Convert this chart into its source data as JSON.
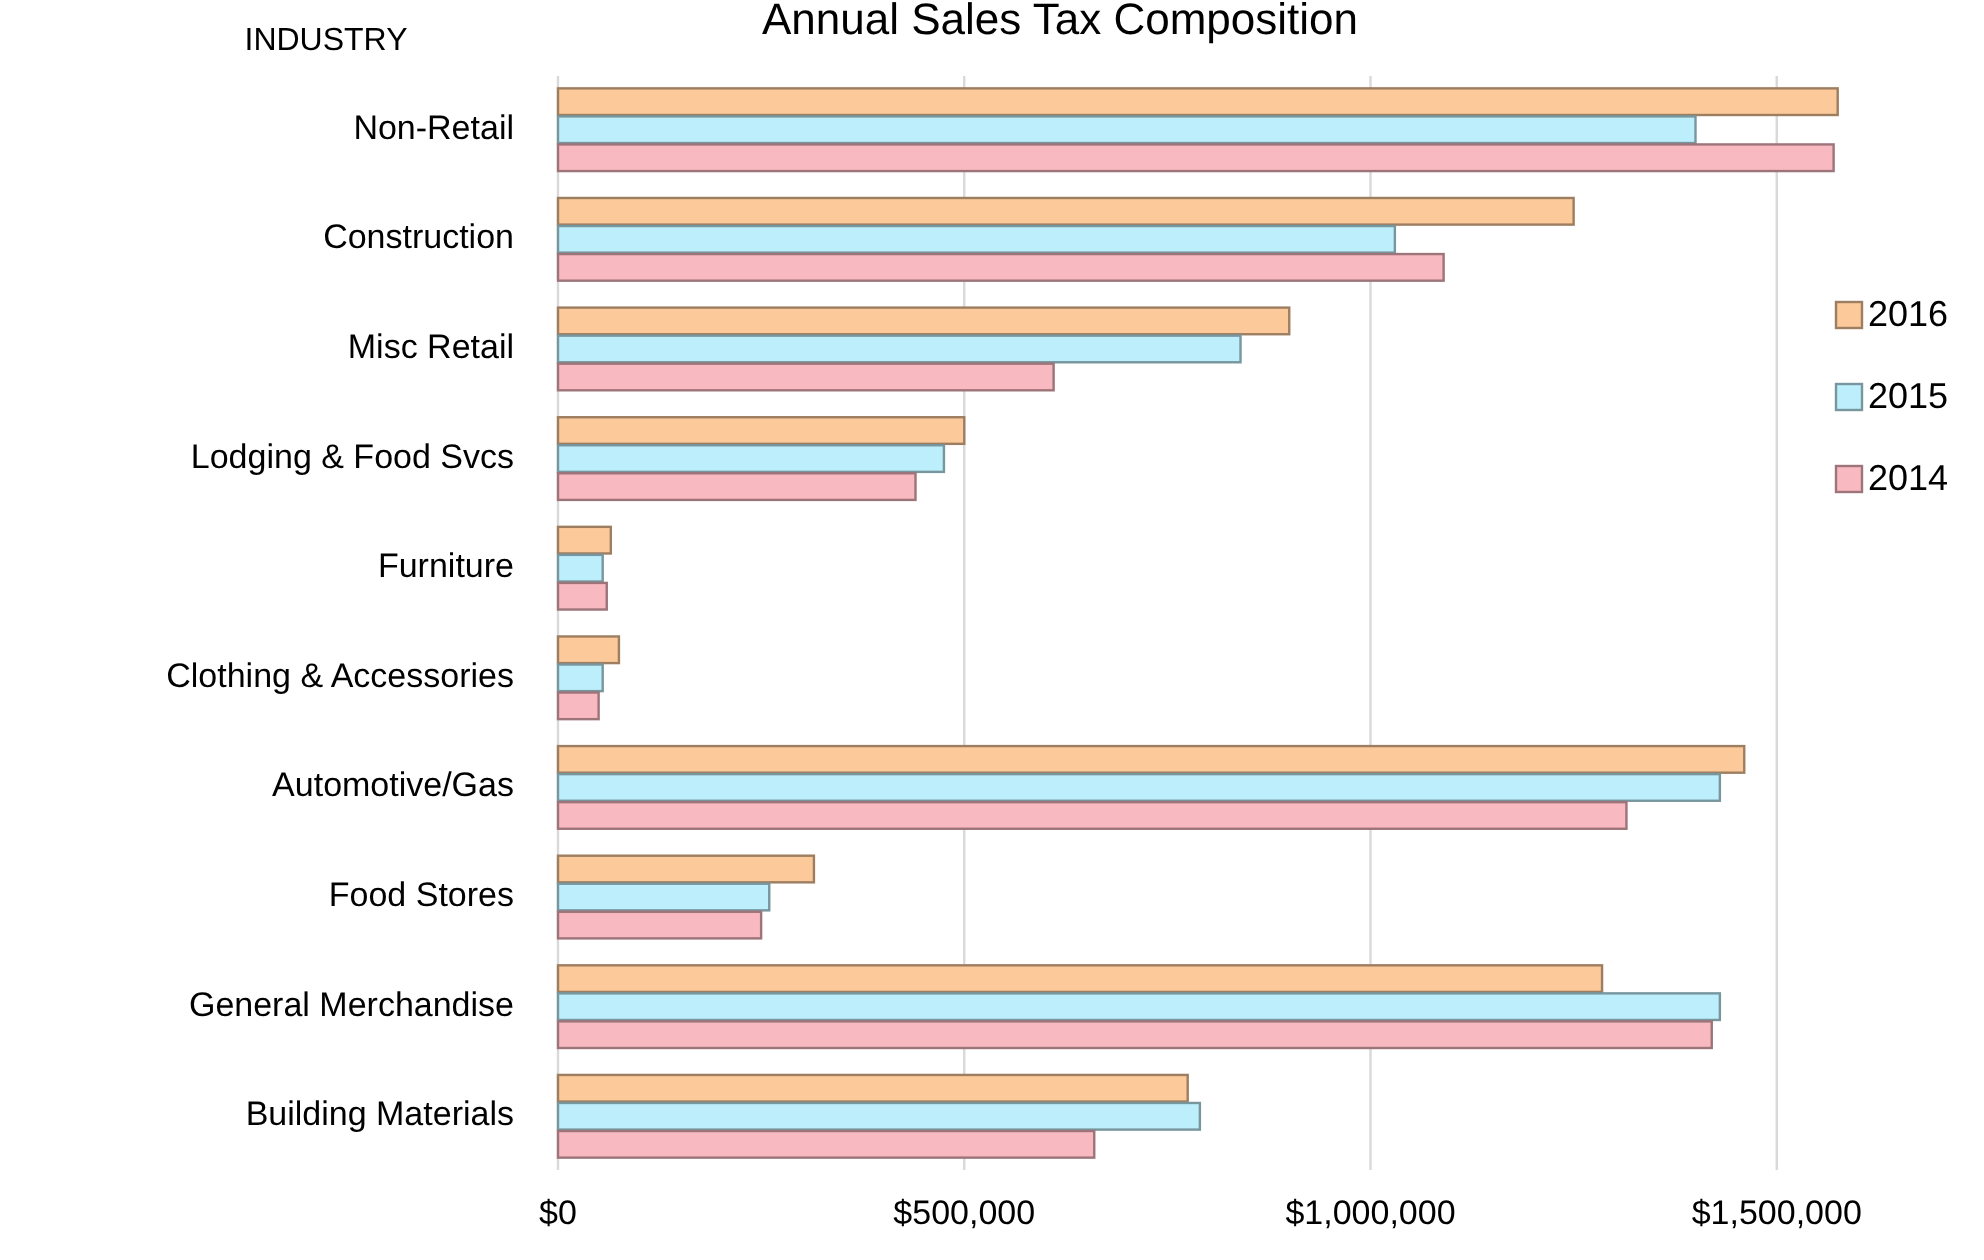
{
  "chart_data": {
    "type": "bar",
    "orientation": "horizontal",
    "title": "Annual Sales Tax Composition",
    "ylabel": "INDUSTRY",
    "categories": [
      "Non-Retail",
      "Construction",
      "Misc Retail",
      "Lodging & Food Svcs",
      "Furniture",
      "Clothing & Accessories",
      "Automotive/Gas",
      "Food Stores",
      "General Merchandise",
      "Building Materials"
    ],
    "series": [
      {
        "name": "2016",
        "color": "#fbc99a",
        "values": [
          1575000,
          1250000,
          900000,
          500000,
          65000,
          75000,
          1460000,
          315000,
          1285000,
          775000
        ]
      },
      {
        "name": "2015",
        "color": "#bdeefb",
        "values": [
          1400000,
          1030000,
          840000,
          475000,
          55000,
          55000,
          1430000,
          260000,
          1430000,
          790000
        ]
      },
      {
        "name": "2014",
        "color": "#f9b9c0",
        "values": [
          1570000,
          1090000,
          610000,
          440000,
          60000,
          50000,
          1315000,
          250000,
          1420000,
          660000
        ]
      }
    ],
    "xlim": [
      0,
      1600000
    ],
    "xticks": [
      {
        "value": 0,
        "label": "$0"
      },
      {
        "value": 500000,
        "label": "$500,000"
      },
      {
        "value": 1000000,
        "label": "$1,000,000"
      },
      {
        "value": 1500000,
        "label": "$1,500,000"
      }
    ],
    "grid": "x",
    "legend": "right"
  }
}
